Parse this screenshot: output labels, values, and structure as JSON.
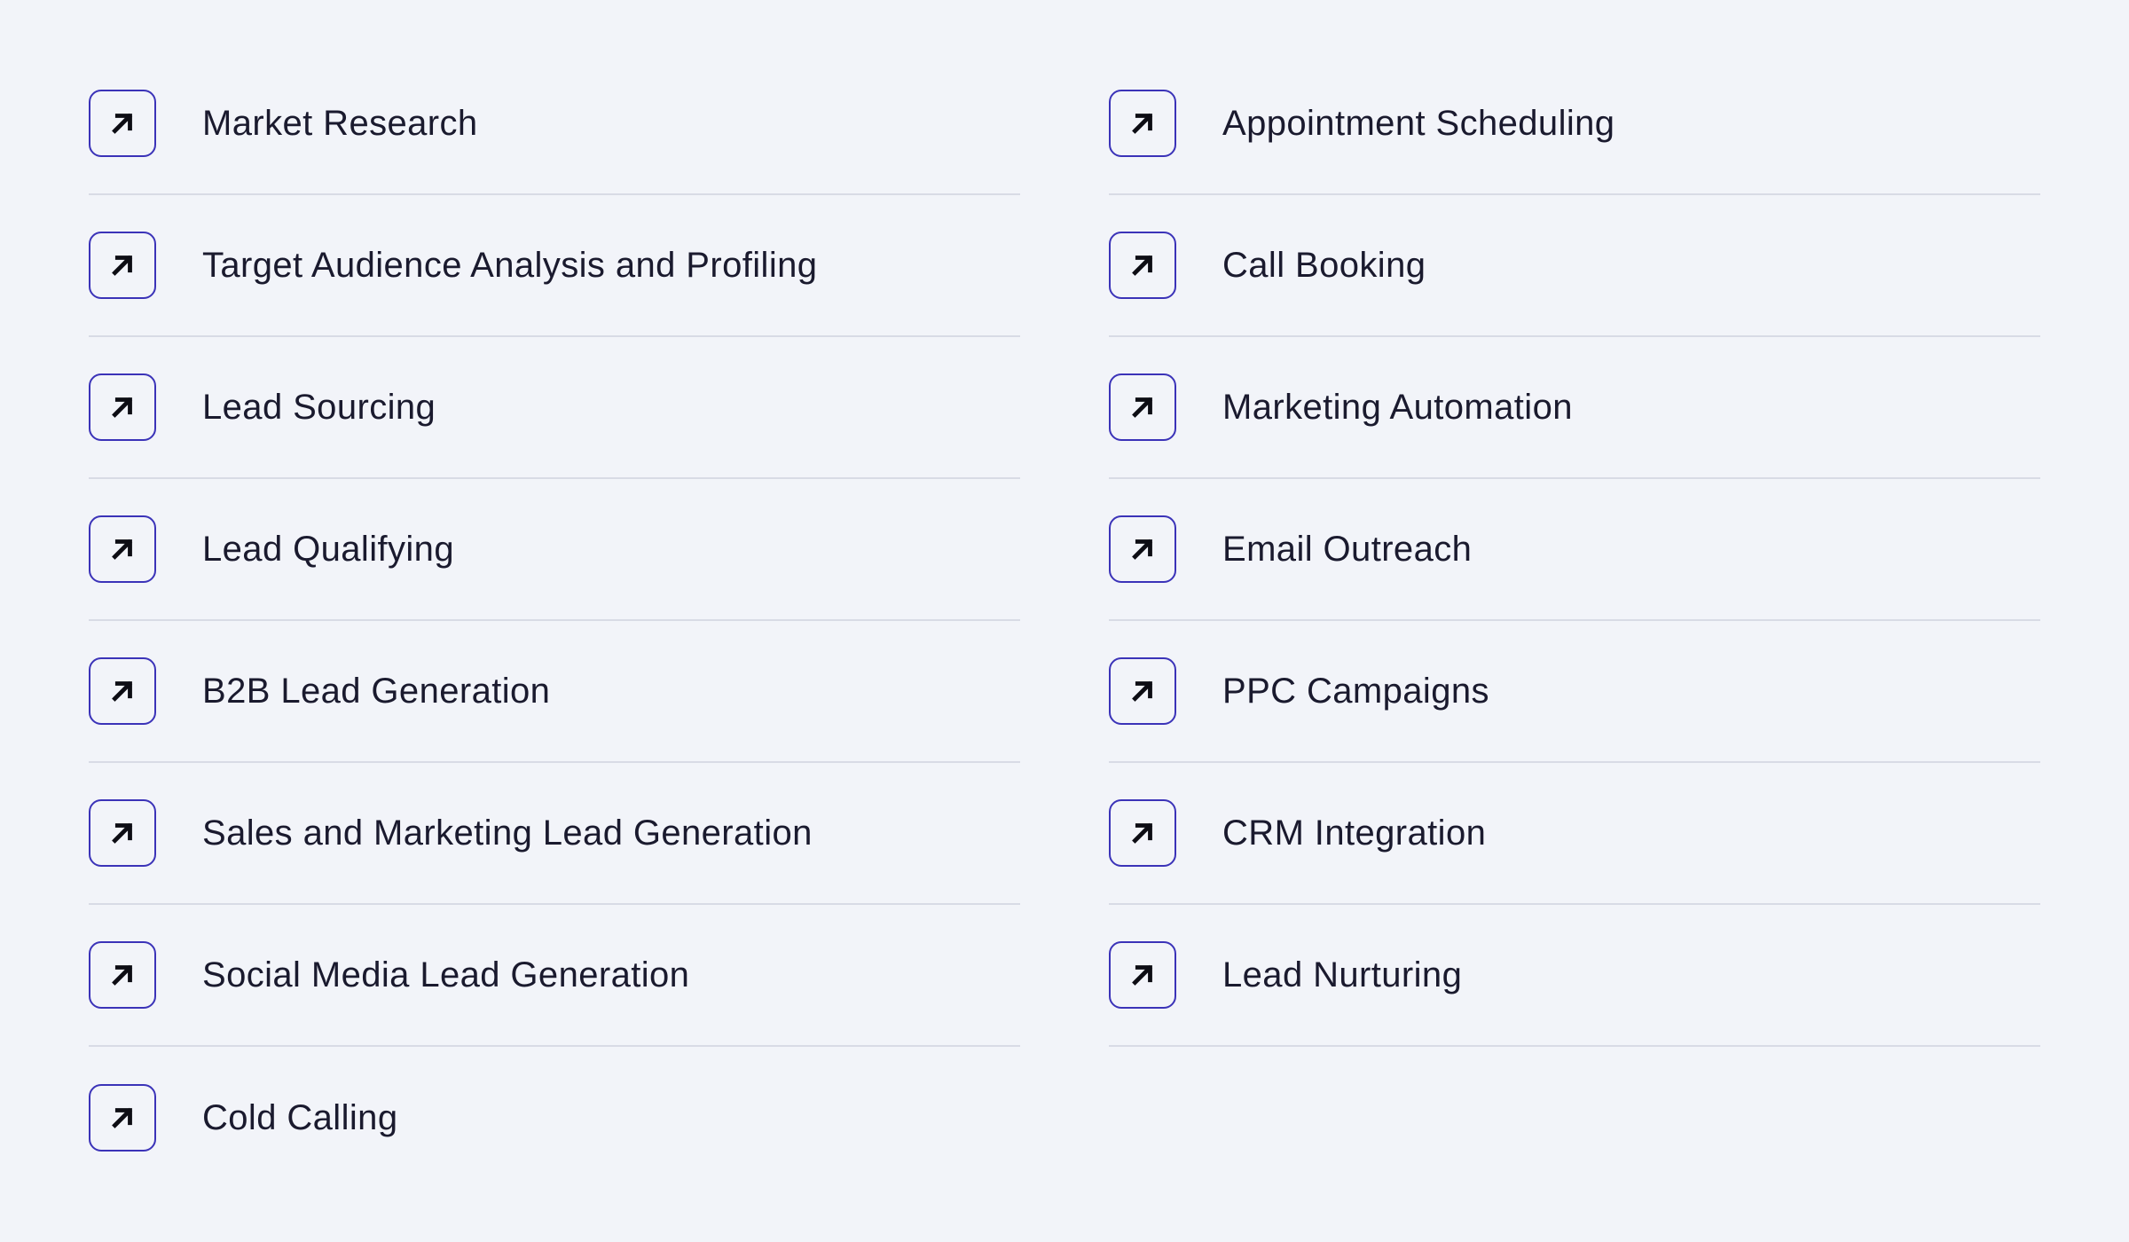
{
  "icon": "arrow-up-right-icon",
  "colors": {
    "background": "#f2f4f9",
    "icon_border": "#3b33b8",
    "divider": "#d8dbe5",
    "text": "#1a1a2e"
  },
  "left_column": [
    {
      "label": "Market Research"
    },
    {
      "label": "Target Audience Analysis and Profiling"
    },
    {
      "label": "Lead Sourcing"
    },
    {
      "label": "Lead Qualifying"
    },
    {
      "label": "B2B Lead Generation"
    },
    {
      "label": "Sales and Marketing Lead Generation"
    },
    {
      "label": "Social Media Lead Generation"
    },
    {
      "label": "Cold Calling"
    }
  ],
  "right_column": [
    {
      "label": "Appointment Scheduling"
    },
    {
      "label": "Call Booking"
    },
    {
      "label": "Marketing Automation"
    },
    {
      "label": "Email Outreach"
    },
    {
      "label": "PPC Campaigns"
    },
    {
      "label": "CRM Integration"
    },
    {
      "label": "Lead Nurturing"
    }
  ]
}
